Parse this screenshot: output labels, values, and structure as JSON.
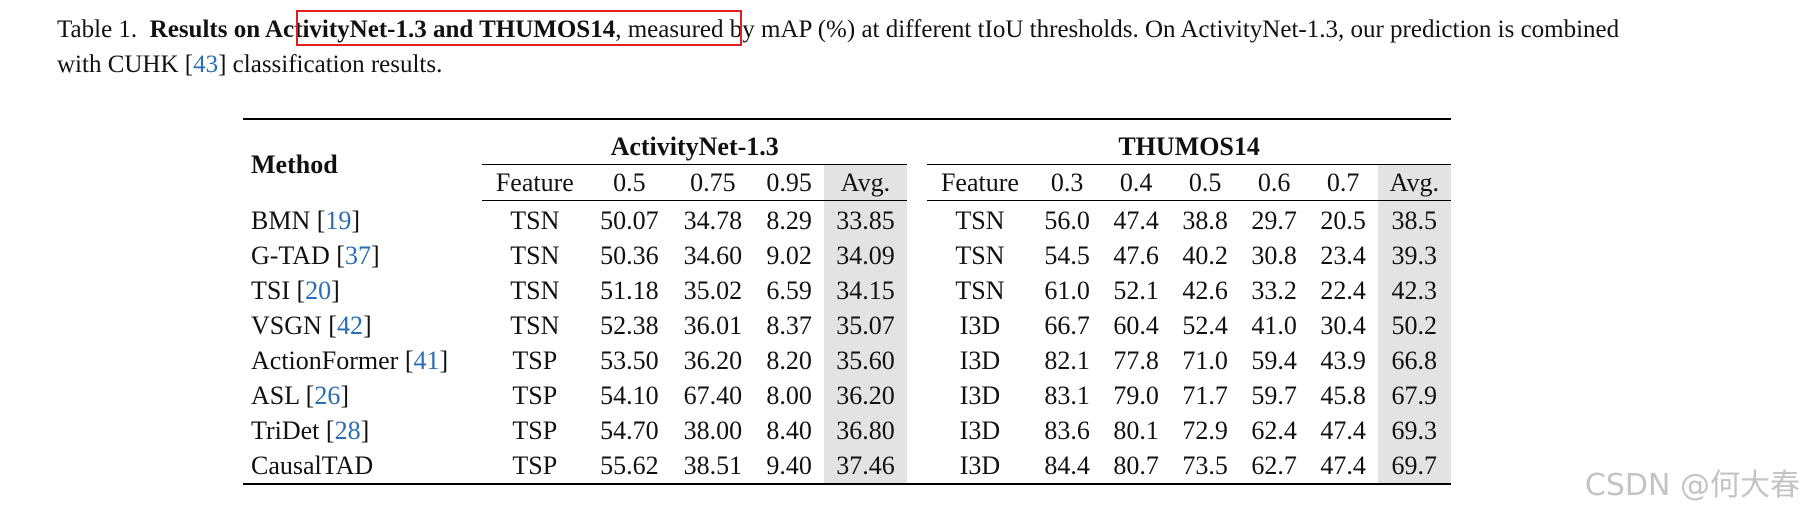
{
  "caption": {
    "prefix": "Table 1.",
    "bold_text": "Results on ActivityNet-1.3 and THUMOS14",
    "text_part1": ", measured by mAP (%) at different tIoU thresholds. On ActivityNet-1.3, our prediction is combined with CUHK [",
    "cite": "43",
    "text_part2": "] classification results."
  },
  "table": {
    "method_header": "Method",
    "groups": [
      {
        "name": "ActivityNet-1.3",
        "columns": [
          "Feature",
          "0.5",
          "0.75",
          "0.95",
          "Avg."
        ]
      },
      {
        "name": "THUMOS14",
        "columns": [
          "Feature",
          "0.3",
          "0.4",
          "0.5",
          "0.6",
          "0.7",
          "Avg."
        ]
      }
    ],
    "rows": [
      {
        "name": "BMN",
        "ref": "19",
        "anet_feature": "TSN",
        "anet": [
          "50.07",
          "34.78",
          "8.29",
          "33.85"
        ],
        "th_feature": "TSN",
        "thumos": [
          "56.0",
          "47.4",
          "38.8",
          "29.7",
          "20.5",
          "38.5"
        ]
      },
      {
        "name": "G-TAD",
        "ref": "37",
        "anet_feature": "TSN",
        "anet": [
          "50.36",
          "34.60",
          "9.02",
          "34.09"
        ],
        "th_feature": "TSN",
        "thumos": [
          "54.5",
          "47.6",
          "40.2",
          "30.8",
          "23.4",
          "39.3"
        ]
      },
      {
        "name": "TSI",
        "ref": "20",
        "anet_feature": "TSN",
        "anet": [
          "51.18",
          "35.02",
          "6.59",
          "34.15"
        ],
        "th_feature": "TSN",
        "thumos": [
          "61.0",
          "52.1",
          "42.6",
          "33.2",
          "22.4",
          "42.3"
        ]
      },
      {
        "name": "VSGN",
        "ref": "42",
        "anet_feature": "TSN",
        "anet": [
          "52.38",
          "36.01",
          "8.37",
          "35.07"
        ],
        "th_feature": "I3D",
        "thumos": [
          "66.7",
          "60.4",
          "52.4",
          "41.0",
          "30.4",
          "50.2"
        ]
      },
      {
        "name": "ActionFormer",
        "ref": "41",
        "anet_feature": "TSP",
        "anet": [
          "53.50",
          "36.20",
          "8.20",
          "35.60"
        ],
        "th_feature": "I3D",
        "thumos": [
          "82.1",
          "77.8",
          "71.0",
          "59.4",
          "43.9",
          "66.8"
        ]
      },
      {
        "name": "ASL",
        "ref": "26",
        "anet_feature": "TSP",
        "anet": [
          "54.10",
          "67.40",
          "8.00",
          "36.20"
        ],
        "th_feature": "I3D",
        "thumos": [
          "83.1",
          "79.0",
          "71.7",
          "59.7",
          "45.8",
          "67.9"
        ]
      },
      {
        "name": "TriDet",
        "ref": "28",
        "anet_feature": "TSP",
        "anet": [
          "54.70",
          "38.00",
          "8.40",
          "36.80"
        ],
        "th_feature": "I3D",
        "thumos": [
          "83.6",
          "80.1",
          "72.9",
          "62.4",
          "47.4",
          "69.3"
        ]
      },
      {
        "name": "CausalTAD",
        "ref": "",
        "anet_feature": "TSP",
        "anet": [
          "55.62",
          "38.51",
          "9.40",
          "37.46"
        ],
        "th_feature": "I3D",
        "thumos": [
          "84.4",
          "80.7",
          "73.5",
          "62.7",
          "47.4",
          "69.7"
        ]
      }
    ]
  },
  "watermark": "CSDN @何大春",
  "colors": {
    "highlight_box": "#e02020",
    "cite": "#2a6db5",
    "avg_bg": "#e3e3e3"
  }
}
